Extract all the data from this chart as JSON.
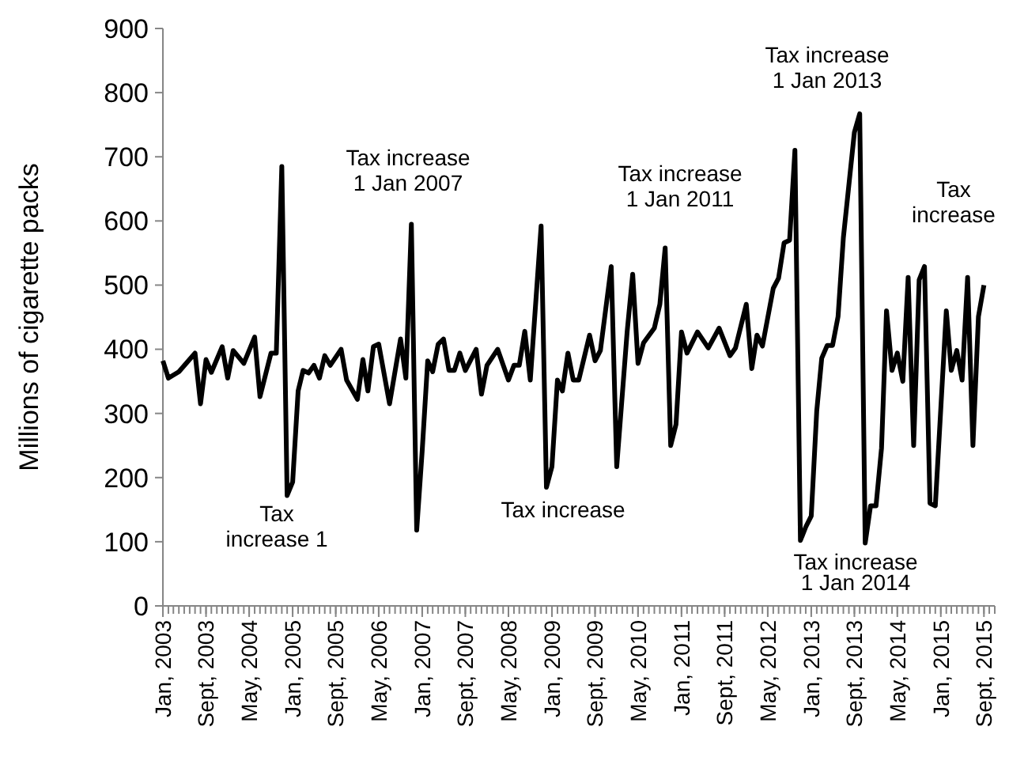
{
  "chart_data": {
    "type": "line",
    "ylabel": "Millions of cigarette packs",
    "xlim": [
      "2003-01",
      "2015-11"
    ],
    "xticks": [
      {
        "value": "2003-01",
        "label": "Jan, 2003"
      },
      {
        "value": "2003-09",
        "label": "Sept, 2003"
      },
      {
        "value": "2004-05",
        "label": "May, 2004"
      },
      {
        "value": "2005-01",
        "label": "Jan, 2005"
      },
      {
        "value": "2005-09",
        "label": "Sept, 2005"
      },
      {
        "value": "2006-05",
        "label": "May, 2006"
      },
      {
        "value": "2007-01",
        "label": "Jan, 2007"
      },
      {
        "value": "2007-09",
        "label": "Sept, 2007"
      },
      {
        "value": "2008-05",
        "label": "May, 2008"
      },
      {
        "value": "2009-01",
        "label": "Jan, 2009"
      },
      {
        "value": "2009-09",
        "label": "Sept, 2009"
      },
      {
        "value": "2010-05",
        "label": "May, 2010"
      },
      {
        "value": "2011-01",
        "label": "Jan, 2011"
      },
      {
        "value": "2011-09",
        "label": "Sept, 2011"
      },
      {
        "value": "2012-05",
        "label": "May, 2012"
      },
      {
        "value": "2013-01",
        "label": "Jan, 2013"
      },
      {
        "value": "2013-09",
        "label": "Sept, 2013"
      },
      {
        "value": "2014-05",
        "label": "May, 2014"
      },
      {
        "value": "2015-01",
        "label": "Jan, 2015"
      },
      {
        "value": "2015-09",
        "label": "Sept, 2015"
      }
    ],
    "ylim": [
      0,
      900
    ],
    "yticks": [
      0,
      100,
      200,
      300,
      400,
      500,
      600,
      700,
      800,
      900
    ],
    "grid": false,
    "marker": "none",
    "line_style": "solid",
    "series": [
      {
        "color": "#000000",
        "x": [
          "2003-01",
          "2003-02",
          "2003-04",
          "2003-07",
          "2003-08",
          "2003-09",
          "2003-10",
          "2003-12",
          "2004-01",
          "2004-02",
          "2004-04",
          "2004-06",
          "2004-07",
          "2004-09",
          "2004-10",
          "2004-11",
          "2004-12",
          "2005-01",
          "2005-02",
          "2005-03",
          "2005-04",
          "2005-05",
          "2005-06",
          "2005-07",
          "2005-08",
          "2005-10",
          "2005-11",
          "2006-01",
          "2006-02",
          "2006-03",
          "2006-04",
          "2006-05",
          "2006-07",
          "2006-09",
          "2006-10",
          "2006-11",
          "2006-12",
          "2007-01",
          "2007-02",
          "2007-03",
          "2007-04",
          "2007-05",
          "2007-06",
          "2007-07",
          "2007-08",
          "2007-09",
          "2007-11",
          "2007-12",
          "2008-01",
          "2008-03",
          "2008-05",
          "2008-06",
          "2008-07",
          "2008-08",
          "2008-09",
          "2008-11",
          "2008-12",
          "2009-01",
          "2009-02",
          "2009-03",
          "2009-04",
          "2009-05",
          "2009-06",
          "2009-08",
          "2009-09",
          "2009-10",
          "2009-12",
          "2010-01",
          "2010-03",
          "2010-04",
          "2010-05",
          "2010-06",
          "2010-08",
          "2010-09",
          "2010-10",
          "2010-11",
          "2010-12",
          "2011-01",
          "2011-02",
          "2011-04",
          "2011-06",
          "2011-08",
          "2011-10",
          "2011-11",
          "2012-01",
          "2012-02",
          "2012-03",
          "2012-04",
          "2012-06",
          "2012-07",
          "2012-08",
          "2012-09",
          "2012-10",
          "2012-11",
          "2012-12",
          "2013-01",
          "2013-02",
          "2013-03",
          "2013-04",
          "2013-05",
          "2013-06",
          "2013-07",
          "2013-09",
          "2013-10",
          "2013-11",
          "2013-12",
          "2014-01",
          "2014-02",
          "2014-03",
          "2014-04",
          "2014-05",
          "2014-06",
          "2014-07",
          "2014-08",
          "2014-09",
          "2014-10",
          "2014-11",
          "2014-12",
          "2015-02",
          "2015-03",
          "2015-04",
          "2015-05",
          "2015-06",
          "2015-07",
          "2015-08",
          "2015-09"
        ],
        "values": [
          382,
          355,
          365,
          394,
          315,
          384,
          364,
          404,
          355,
          398,
          378,
          419,
          326,
          394,
          394,
          685,
          172,
          193,
          335,
          367,
          363,
          375,
          355,
          390,
          375,
          400,
          352,
          322,
          384,
          335,
          404,
          408,
          315,
          416,
          355,
          595,
          118,
          242,
          382,
          365,
          408,
          416,
          367,
          367,
          394,
          367,
          400,
          330,
          375,
          400,
          352,
          375,
          375,
          428,
          352,
          592,
          185,
          217,
          352,
          335,
          394,
          352,
          352,
          422,
          382,
          398,
          529,
          217,
          428,
          517,
          378,
          410,
          433,
          470,
          558,
          250,
          283,
          427,
          394,
          427,
          402,
          433,
          390,
          402,
          470,
          370,
          422,
          405,
          495,
          511,
          566,
          570,
          710,
          102,
          123,
          140,
          304,
          386,
          406,
          406,
          451,
          574,
          738,
          767,
          98,
          156,
          156,
          246,
          460,
          367,
          394,
          350,
          512,
          250,
          508,
          529,
          160,
          156,
          460,
          367,
          398,
          352,
          512,
          250,
          451,
          500
        ]
      }
    ],
    "annotations": [
      "Tax\nincrease 1",
      "Tax increase\n1 Jan 2007",
      "Tax increase",
      "Tax increase\n1 Jan 2011",
      "Tax increase\n1 Jan 2013",
      "Tax increase\n1 Jan 2014",
      "Tax\nincrease"
    ]
  }
}
